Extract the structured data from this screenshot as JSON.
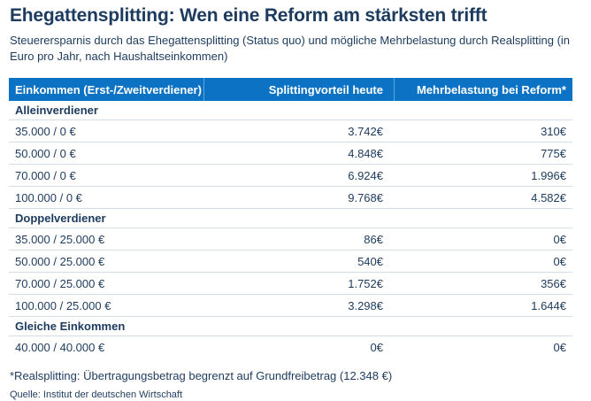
{
  "chart_data": {
    "type": "table",
    "title": "Ehegattensplitting: Wen eine Reform am stärksten trifft",
    "subtitle": "Steuerersparnis durch das Ehegattensplitting (Status quo) und mögliche Mehrbelastung durch Realsplitting (in Euro pro Jahr, nach Haushaltseinkommen)",
    "columns": [
      "Einkommen (Erst-/Zweitverdiener)",
      "Splittingvorteil heute",
      "Mehrbelastung bei Reform*"
    ],
    "sections": [
      {
        "label": "Alleinverdiener",
        "rows": [
          {
            "income": "35.000 / 0 €",
            "erstverdiener_eur": 35000,
            "zweitverdiener_eur": 0,
            "splittingvorteil": "3.742€",
            "splittingvorteil_eur": 3742,
            "mehrbelastung": "310€",
            "mehrbelastung_eur": 310
          },
          {
            "income": "50.000 / 0 €",
            "erstverdiener_eur": 50000,
            "zweitverdiener_eur": 0,
            "splittingvorteil": "4.848€",
            "splittingvorteil_eur": 4848,
            "mehrbelastung": "775€",
            "mehrbelastung_eur": 775
          },
          {
            "income": "70.000 / 0 €",
            "erstverdiener_eur": 70000,
            "zweitverdiener_eur": 0,
            "splittingvorteil": "6.924€",
            "splittingvorteil_eur": 6924,
            "mehrbelastung": "1.996€",
            "mehrbelastung_eur": 1996
          },
          {
            "income": "100.000 / 0 €",
            "erstverdiener_eur": 100000,
            "zweitverdiener_eur": 0,
            "splittingvorteil": "9.768€",
            "splittingvorteil_eur": 9768,
            "mehrbelastung": "4.582€",
            "mehrbelastung_eur": 4582
          }
        ]
      },
      {
        "label": "Doppelverdiener",
        "rows": [
          {
            "income": "35.000 / 25.000 €",
            "erstverdiener_eur": 35000,
            "zweitverdiener_eur": 25000,
            "splittingvorteil": "86€",
            "splittingvorteil_eur": 86,
            "mehrbelastung": "0€",
            "mehrbelastung_eur": 0
          },
          {
            "income": "50.000 / 25.000 €",
            "erstverdiener_eur": 50000,
            "zweitverdiener_eur": 25000,
            "splittingvorteil": "540€",
            "splittingvorteil_eur": 540,
            "mehrbelastung": "0€",
            "mehrbelastung_eur": 0
          },
          {
            "income": "70.000 / 25.000 €",
            "erstverdiener_eur": 70000,
            "zweitverdiener_eur": 25000,
            "splittingvorteil": "1.752€",
            "splittingvorteil_eur": 1752,
            "mehrbelastung": "356€",
            "mehrbelastung_eur": 356
          },
          {
            "income": "100.000 / 25.000 €",
            "erstverdiener_eur": 100000,
            "zweitverdiener_eur": 25000,
            "splittingvorteil": "3.298€",
            "splittingvorteil_eur": 3298,
            "mehrbelastung": "1.644€",
            "mehrbelastung_eur": 1644
          }
        ]
      },
      {
        "label": "Gleiche Einkommen",
        "rows": [
          {
            "income": "40.000 / 40.000 €",
            "erstverdiener_eur": 40000,
            "zweitverdiener_eur": 40000,
            "splittingvorteil": "0€",
            "splittingvorteil_eur": 0,
            "mehrbelastung": "0€",
            "mehrbelastung_eur": 0
          }
        ]
      }
    ],
    "footnote": "*Realsplitting: Übertragungsbetrag begrenzt auf Grundfreibetrag (12.348 €)",
    "source": "Quelle: Institut der deutschen Wirtschaft"
  },
  "colors": {
    "navy": "#1c3b5e",
    "header_blue": "#0b72c4",
    "divider": "#d7dde5"
  }
}
